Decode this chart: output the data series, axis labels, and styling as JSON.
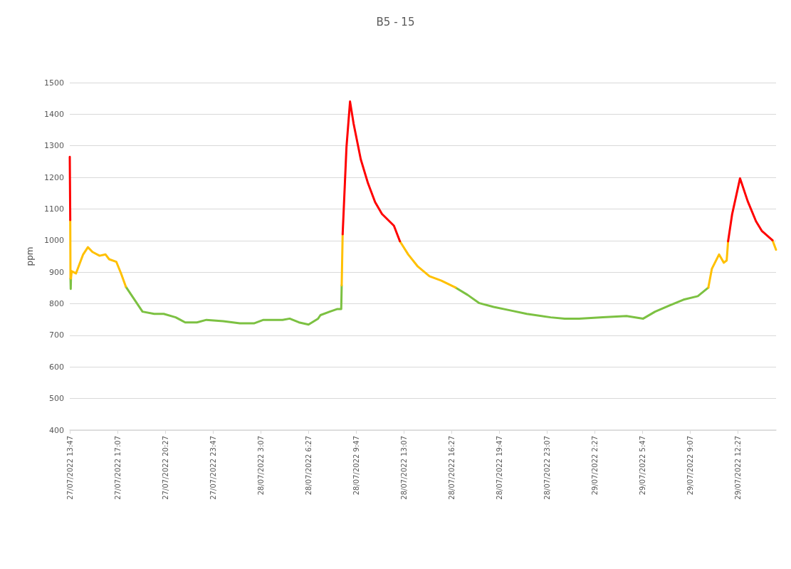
{
  "chart_data": {
    "type": "line",
    "title": "B5 - 15",
    "ylabel": "ppm",
    "grid": "y",
    "marker": "none",
    "xlim": [
      "2022-07-27T13:47",
      "2022-07-29T15:08"
    ],
    "xticks": [
      {
        "value": "2022-07-27T13:47",
        "label": "27/07/2022 13:47"
      },
      {
        "value": "2022-07-27T17:07",
        "label": "27/07/2022 17:07"
      },
      {
        "value": "2022-07-27T20:27",
        "label": "27/07/2022 20:27"
      },
      {
        "value": "2022-07-27T23:47",
        "label": "27/07/2022 23:47"
      },
      {
        "value": "2022-07-28T03:07",
        "label": "28/07/2022 3:07"
      },
      {
        "value": "2022-07-28T06:27",
        "label": "28/07/2022 6:27"
      },
      {
        "value": "2022-07-28T09:47",
        "label": "28/07/2022 9:47"
      },
      {
        "value": "2022-07-28T13:07",
        "label": "28/07/2022 13:07"
      },
      {
        "value": "2022-07-28T16:27",
        "label": "28/07/2022 16:27"
      },
      {
        "value": "2022-07-28T19:47",
        "label": "28/07/2022 19:47"
      },
      {
        "value": "2022-07-28T23:07",
        "label": "28/07/2022 23:07"
      },
      {
        "value": "2022-07-29T02:27",
        "label": "29/07/2022 2:27"
      },
      {
        "value": "2022-07-29T05:47",
        "label": "29/07/2022 5:47"
      },
      {
        "value": "2022-07-29T09:07",
        "label": "29/07/2022 9:07"
      },
      {
        "value": "2022-07-29T12:27",
        "label": "29/07/2022 12:27"
      }
    ],
    "ylim": [
      400,
      1500
    ],
    "yticks": [
      400,
      500,
      600,
      700,
      800,
      900,
      1000,
      1100,
      1200,
      1300,
      1400,
      1500
    ],
    "series": [
      {
        "color": "#7cc142",
        "x": [
          "2022-07-27T13:50",
          "2022-07-27T13:51",
          "2022-07-27T13:52",
          null,
          "2022-07-27T17:42",
          "2022-07-27T18:12",
          "2022-07-27T18:52",
          "2022-07-27T19:41",
          "2022-07-27T20:21",
          "2022-07-27T21:11",
          "2022-07-27T21:51",
          "2022-07-27T22:40",
          "2022-07-27T23:20",
          "2022-07-28T00:30",
          "2022-07-28T01:40",
          "2022-07-28T02:39",
          "2022-07-28T03:19",
          "2022-07-28T04:39",
          "2022-07-28T05:09",
          "2022-07-28T05:48",
          "2022-07-28T06:28",
          "2022-07-28T07:08",
          "2022-07-28T07:18",
          "2022-07-28T07:57",
          "2022-07-28T08:27",
          "2022-07-28T08:45",
          "2022-07-28T08:47",
          null,
          "2022-07-28T16:45",
          "2022-07-28T17:35",
          "2022-07-28T18:24",
          "2022-07-28T19:24",
          "2022-07-28T20:34",
          "2022-07-28T21:43",
          "2022-07-28T23:23",
          "2022-07-29T00:22",
          "2022-07-29T01:22",
          "2022-07-29T03:02",
          "2022-07-29T04:41",
          "2022-07-29T05:51",
          "2022-07-29T06:41",
          "2022-07-29T07:40",
          "2022-07-29T08:40",
          "2022-07-29T09:40",
          "2022-07-29T10:24"
        ],
        "values": [
          880,
          847,
          880,
          null,
          854,
          820,
          775,
          768,
          768,
          757,
          741,
          741,
          749,
          745,
          738,
          738,
          749,
          749,
          753,
          741,
          734,
          753,
          764,
          775,
          783,
          783,
          858,
          null,
          851,
          828,
          802,
          790,
          779,
          768,
          757,
          753,
          753,
          757,
          761,
          753,
          775,
          794,
          813,
          824,
          851
        ]
      },
      {
        "color": "#ffc000",
        "x": [
          "2022-07-27T13:49",
          "2022-07-27T13:50",
          null,
          "2022-07-27T13:52",
          "2022-07-27T13:55",
          "2022-07-27T14:13",
          "2022-07-27T14:43",
          "2022-07-27T15:03",
          "2022-07-27T15:22",
          "2022-07-27T15:52",
          "2022-07-27T16:17",
          "2022-07-27T16:32",
          "2022-07-27T17:02",
          "2022-07-27T17:22",
          "2022-07-27T17:42",
          null,
          "2022-07-28T08:47",
          "2022-07-28T08:51",
          null,
          "2022-07-28T12:51",
          "2022-07-28T13:26",
          "2022-07-28T14:06",
          "2022-07-28T14:55",
          "2022-07-28T15:45",
          "2022-07-28T16:45",
          null,
          "2022-07-29T10:24",
          "2022-07-29T10:39",
          "2022-07-29T11:09",
          "2022-07-29T11:29",
          "2022-07-29T11:41",
          "2022-07-29T11:47",
          null,
          "2022-07-29T14:53",
          "2022-07-29T15:08"
        ],
        "values": [
          1065,
          880,
          null,
          880,
          903,
          896,
          956,
          979,
          964,
          952,
          956,
          941,
          933,
          896,
          854,
          null,
          858,
          1020,
          null,
          998,
          956,
          918,
          887,
          873,
          851,
          null,
          851,
          911,
          956,
          930,
          937,
          998,
          null,
          1001,
          971
        ]
      },
      {
        "color": "#ff0000",
        "x": [
          "2022-07-27T13:47",
          "2022-07-27T13:49",
          null,
          "2022-07-28T08:51",
          "2022-07-28T09:07",
          "2022-07-28T09:22",
          "2022-07-28T09:37",
          "2022-07-28T10:07",
          "2022-07-28T10:37",
          "2022-07-28T11:07",
          "2022-07-28T11:36",
          "2022-07-28T12:26",
          "2022-07-28T12:51",
          null,
          "2022-07-29T11:47",
          "2022-07-29T12:04",
          "2022-07-29T12:37",
          "2022-07-29T13:09",
          "2022-07-29T13:44",
          "2022-07-29T14:08",
          "2022-07-29T14:53"
        ],
        "values": [
          1265,
          1065,
          null,
          1020,
          1295,
          1440,
          1370,
          1257,
          1182,
          1122,
          1084,
          1047,
          998,
          null,
          998,
          1084,
          1197,
          1125,
          1061,
          1031,
          1001
        ]
      }
    ]
  }
}
